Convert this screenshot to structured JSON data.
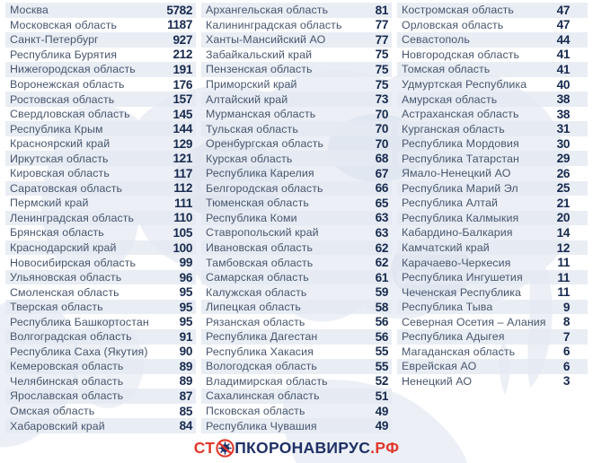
{
  "colors": {
    "stripe": "#e4e9f1",
    "region_name": "#47566e",
    "value": "#16294e",
    "logo_red": "#e1372a",
    "logo_navy": "#1f3066",
    "map": "#dde3ee",
    "map_dark": "#cfd8e6"
  },
  "footer": {
    "logo_prefix": "СТ",
    "logo_icon": "no-virus-icon",
    "logo_text": "ПКОРОНАВИРУС",
    "logo_domain": ".РФ"
  },
  "chart_data": {
    "type": "table",
    "title": "",
    "description": "Cases by region of Russia, three-column ranked table",
    "columns": [
      {
        "rows": [
          {
            "region": "Москва",
            "value": 5782
          },
          {
            "region": "Московская область",
            "value": 1187
          },
          {
            "region": "Санкт-Петербург",
            "value": 927
          },
          {
            "region": "Республика Бурятия",
            "value": 212
          },
          {
            "region": "Нижегородская область",
            "value": 191
          },
          {
            "region": "Воронежская область",
            "value": 176
          },
          {
            "region": "Ростовская область",
            "value": 157
          },
          {
            "region": "Свердловская область",
            "value": 145
          },
          {
            "region": "Республика Крым",
            "value": 144
          },
          {
            "region": "Красноярский край",
            "value": 129
          },
          {
            "region": "Иркутская область",
            "value": 121
          },
          {
            "region": "Кировская область",
            "value": 117
          },
          {
            "region": "Саратовская область",
            "value": 112
          },
          {
            "region": "Пермский край",
            "value": 111
          },
          {
            "region": "Ленинградская область",
            "value": 110
          },
          {
            "region": "Брянская область",
            "value": 105
          },
          {
            "region": "Краснодарский край",
            "value": 100
          },
          {
            "region": "Новосибирская область",
            "value": 99
          },
          {
            "region": "Ульяновская область",
            "value": 96
          },
          {
            "region": "Смоленская область",
            "value": 95
          },
          {
            "region": "Тверская область",
            "value": 95
          },
          {
            "region": "Республика Башкортостан",
            "value": 95
          },
          {
            "region": "Волгоградская область",
            "value": 91
          },
          {
            "region": "Республика Саха (Якутия)",
            "value": 90
          },
          {
            "region": "Кемеровская область",
            "value": 89
          },
          {
            "region": "Челябинская область",
            "value": 89
          },
          {
            "region": "Ярославская область",
            "value": 87
          },
          {
            "region": "Омская область",
            "value": 85
          },
          {
            "region": "Хабаровский край",
            "value": 84
          }
        ]
      },
      {
        "rows": [
          {
            "region": "Архангельская область",
            "value": 81
          },
          {
            "region": "Калининградская область",
            "value": 77
          },
          {
            "region": "Ханты-Мансийский АО",
            "value": 77
          },
          {
            "region": "Забайкальский край",
            "value": 75
          },
          {
            "region": "Пензенская область",
            "value": 75
          },
          {
            "region": "Приморский край",
            "value": 75
          },
          {
            "region": "Алтайский край",
            "value": 73
          },
          {
            "region": "Мурманская область",
            "value": 70
          },
          {
            "region": "Тульская область",
            "value": 70
          },
          {
            "region": "Оренбургская область",
            "value": 70
          },
          {
            "region": "Курская область",
            "value": 68
          },
          {
            "region": "Республика Карелия",
            "value": 67
          },
          {
            "region": "Белгородская область",
            "value": 66
          },
          {
            "region": "Тюменская область",
            "value": 65
          },
          {
            "region": "Республика Коми",
            "value": 63
          },
          {
            "region": "Ставропольский край",
            "value": 63
          },
          {
            "region": "Ивановская область",
            "value": 62
          },
          {
            "region": "Тамбовская область",
            "value": 62
          },
          {
            "region": "Самарская область",
            "value": 61
          },
          {
            "region": "Калужская область",
            "value": 59
          },
          {
            "region": "Липецкая область",
            "value": 58
          },
          {
            "region": "Рязанская область",
            "value": 56
          },
          {
            "region": "Республика Дагестан",
            "value": 56
          },
          {
            "region": "Республика Хакасия",
            "value": 55
          },
          {
            "region": "Вологодская область",
            "value": 55
          },
          {
            "region": "Владимирская область",
            "value": 52
          },
          {
            "region": "Сахалинская область",
            "value": 51
          },
          {
            "region": "Псковская область",
            "value": 49
          },
          {
            "region": "Республика Чувашия",
            "value": 49
          }
        ]
      },
      {
        "rows": [
          {
            "region": "Костромская область",
            "value": 47
          },
          {
            "region": "Орловская область",
            "value": 47
          },
          {
            "region": "Севастополь",
            "value": 44
          },
          {
            "region": "Новгородская область",
            "value": 41
          },
          {
            "region": "Томская область",
            "value": 41
          },
          {
            "region": "Удмуртская Республика",
            "value": 40
          },
          {
            "region": "Амурская область",
            "value": 38
          },
          {
            "region": "Астраханская область",
            "value": 38
          },
          {
            "region": "Курганская область",
            "value": 31
          },
          {
            "region": "Республика Мордовия",
            "value": 30
          },
          {
            "region": "Республика Татарстан",
            "value": 29
          },
          {
            "region": "Ямало-Ненецкий АО",
            "value": 26
          },
          {
            "region": "Республика Марий Эл",
            "value": 25
          },
          {
            "region": "Республика Алтай",
            "value": 21
          },
          {
            "region": "Республика Калмыкия",
            "value": 20
          },
          {
            "region": "Кабардино-Балкария",
            "value": 14
          },
          {
            "region": "Камчатский край",
            "value": 12
          },
          {
            "region": "Карачаево-Черкесия",
            "value": 11
          },
          {
            "region": "Республика Ингушетия",
            "value": 11
          },
          {
            "region": "Чеченская Республика",
            "value": 11
          },
          {
            "region": "Республика Тыва",
            "value": 9
          },
          {
            "region": "Северная Осетия – Алания",
            "value": 8
          },
          {
            "region": "Республика Адыгея",
            "value": 7
          },
          {
            "region": "Магаданская область",
            "value": 6
          },
          {
            "region": "Еврейская АО",
            "value": 6
          },
          {
            "region": "Ненецкий АО",
            "value": 3
          }
        ]
      }
    ]
  }
}
